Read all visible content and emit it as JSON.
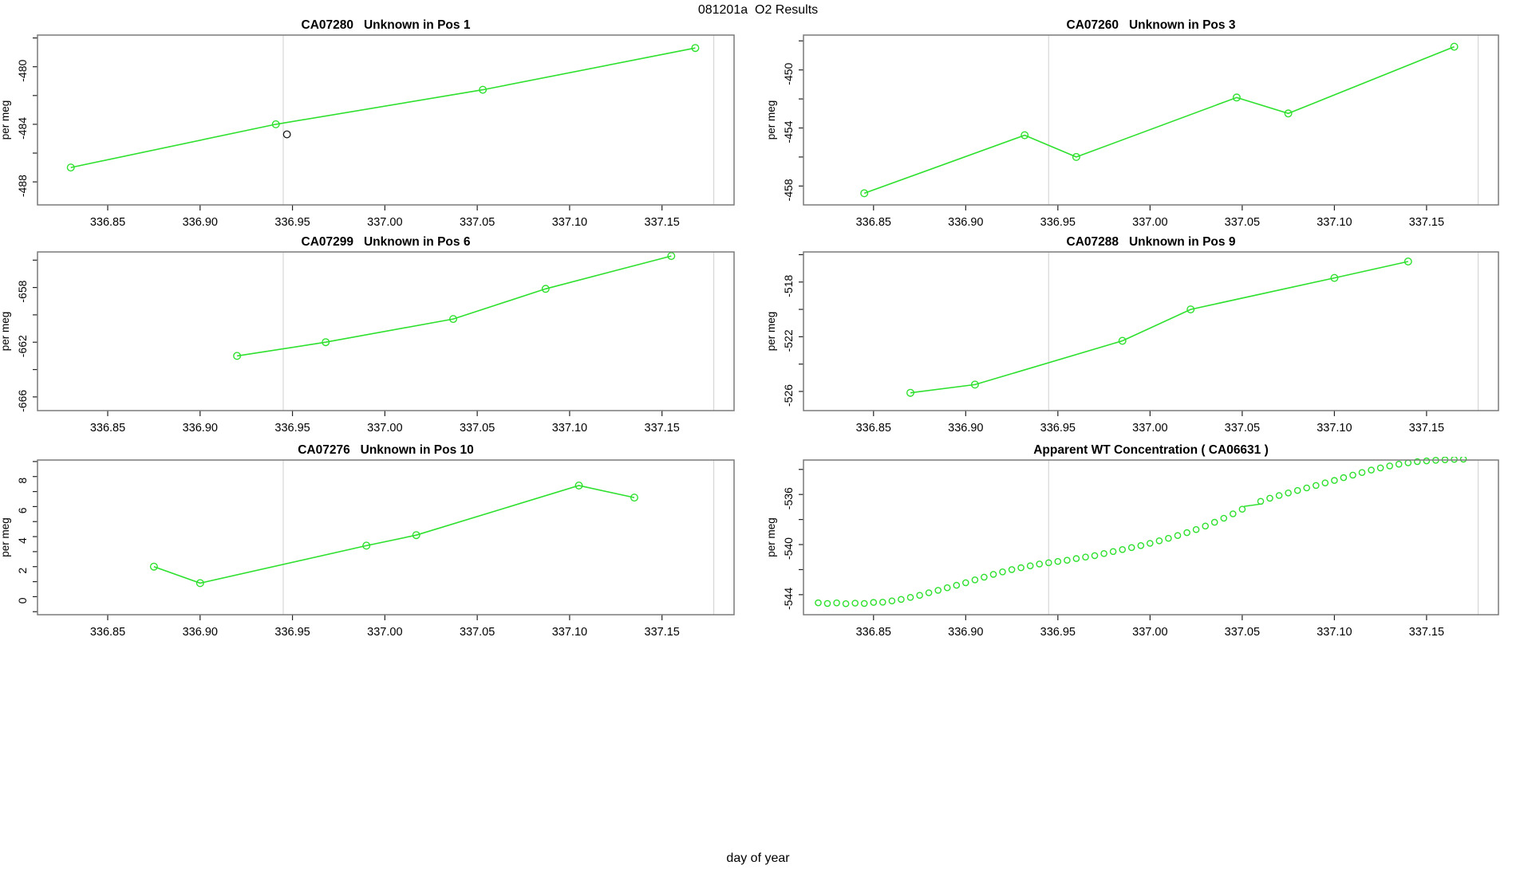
{
  "figure": {
    "title": "081201a  O2 Results",
    "xlabel": "day of year"
  },
  "colors": {
    "series_green": "#2ee02e",
    "outlier_black": "#1a1a1a",
    "gridline": "#d6d6d6",
    "box": "#7a7a7a",
    "tick": "#222222",
    "text": "#000000"
  },
  "axes": {
    "xlim": [
      336.812,
      337.189
    ],
    "xticks": [
      336.85,
      336.9,
      336.95,
      337.0,
      337.05,
      337.1,
      337.15
    ],
    "xtick_labels": [
      "336.85",
      "336.90",
      "336.95",
      "337.00",
      "337.05",
      "337.10",
      "337.15"
    ],
    "vlines": [
      336.945,
      337.178
    ],
    "ylabel": "per meg"
  },
  "chart_data": [
    {
      "id": "CA07280",
      "title": "CA07280   Unknown in Pos 1",
      "type": "line",
      "ylim": [
        -489.6,
        -477.8
      ],
      "yticks": [
        -488,
        -484,
        -480
      ],
      "ytick_labels": [
        "-488",
        "-484",
        "-480"
      ],
      "minor_tick_step": 2,
      "points": [
        [
          336.83,
          -487.0
        ],
        [
          336.941,
          -484.0
        ],
        [
          337.053,
          -481.6
        ],
        [
          337.168,
          -478.7
        ]
      ],
      "extra_points": [
        {
          "x": 336.947,
          "y": -484.7,
          "color": "black"
        }
      ],
      "draw_line": true
    },
    {
      "id": "CA07260",
      "title": "CA07260   Unknown in Pos 3",
      "type": "line",
      "ylim": [
        -459.3,
        -447.6
      ],
      "yticks": [
        -458,
        -454,
        -450
      ],
      "ytick_labels": [
        "-458",
        "-454",
        "-450"
      ],
      "minor_tick_step": 2,
      "points": [
        [
          336.845,
          -458.5
        ],
        [
          336.932,
          -454.5
        ],
        [
          336.96,
          -456.0
        ],
        [
          337.047,
          -451.9
        ],
        [
          337.075,
          -453.0
        ],
        [
          337.165,
          -448.4
        ]
      ],
      "extra_points": [],
      "draw_line": true
    },
    {
      "id": "CA07299",
      "title": "CA07299   Unknown in Pos 6",
      "type": "line",
      "ylim": [
        -667.0,
        -655.4
      ],
      "yticks": [
        -666,
        -662,
        -658
      ],
      "ytick_labels": [
        "-666",
        "-662",
        "-658"
      ],
      "minor_tick_step": 2,
      "points": [
        [
          336.92,
          -663.0
        ],
        [
          336.968,
          -662.0
        ],
        [
          337.037,
          -660.3
        ],
        [
          337.087,
          -658.1
        ],
        [
          337.155,
          -655.7
        ]
      ],
      "extra_points": [],
      "draw_line": true
    },
    {
      "id": "CA07288",
      "title": "CA07288   Unknown in Pos 9",
      "type": "line",
      "ylim": [
        -527.4,
        -515.8
      ],
      "yticks": [
        -526,
        -522,
        -518
      ],
      "ytick_labels": [
        "-526",
        "-522",
        "-518"
      ],
      "minor_tick_step": 2,
      "points": [
        [
          336.87,
          -526.1
        ],
        [
          336.905,
          -525.5
        ],
        [
          336.985,
          -522.3
        ],
        [
          337.022,
          -520.0
        ],
        [
          337.1,
          -517.7
        ],
        [
          337.14,
          -516.5
        ]
      ],
      "extra_points": [],
      "draw_line": true
    },
    {
      "id": "CA07276",
      "title": "CA07276   Unknown in Pos 10",
      "type": "line",
      "ylim": [
        -1.2,
        9.1
      ],
      "yticks": [
        0,
        2,
        4,
        6,
        8
      ],
      "ytick_labels": [
        "0",
        "2",
        "4",
        "6",
        "8"
      ],
      "minor_tick_step": 1,
      "points": [
        [
          336.875,
          2.0
        ],
        [
          336.9,
          0.9
        ],
        [
          336.99,
          3.4
        ],
        [
          337.017,
          4.1
        ],
        [
          337.105,
          7.4
        ],
        [
          337.135,
          6.6
        ]
      ],
      "extra_points": [],
      "draw_line": true
    },
    {
      "id": "CA06631",
      "title": "Apparent WT Concentration ( CA06631 )",
      "type": "scatter",
      "ylim": [
        -545.6,
        -533.25
      ],
      "yticks": [
        -544,
        -540,
        -536
      ],
      "ytick_labels": [
        "-544",
        "-540",
        "-536"
      ],
      "minor_tick_step": 2,
      "points": [
        [
          336.82,
          -544.65
        ],
        [
          336.825,
          -544.7
        ],
        [
          336.83,
          -544.66
        ],
        [
          336.835,
          -544.72
        ],
        [
          336.84,
          -544.68
        ],
        [
          336.845,
          -544.7
        ],
        [
          336.85,
          -544.62
        ],
        [
          336.855,
          -544.6
        ],
        [
          336.86,
          -544.5
        ],
        [
          336.865,
          -544.38
        ],
        [
          336.87,
          -544.22
        ],
        [
          336.875,
          -544.05
        ],
        [
          336.88,
          -543.85
        ],
        [
          336.885,
          -543.65
        ],
        [
          336.89,
          -543.45
        ],
        [
          336.895,
          -543.25
        ],
        [
          336.9,
          -543.05
        ],
        [
          336.905,
          -542.82
        ],
        [
          336.91,
          -542.6
        ],
        [
          336.915,
          -542.38
        ],
        [
          336.92,
          -542.18
        ],
        [
          336.925,
          -542.0
        ],
        [
          336.93,
          -541.85
        ],
        [
          336.935,
          -541.7
        ],
        [
          336.94,
          -541.55
        ],
        [
          336.945,
          -541.45
        ],
        [
          336.95,
          -541.35
        ],
        [
          336.955,
          -541.25
        ],
        [
          336.96,
          -541.12
        ],
        [
          336.965,
          -541.0
        ],
        [
          336.97,
          -540.88
        ],
        [
          336.975,
          -540.72
        ],
        [
          336.98,
          -540.56
        ],
        [
          336.985,
          -540.4
        ],
        [
          336.99,
          -540.24
        ],
        [
          336.995,
          -540.08
        ],
        [
          337.0,
          -539.9
        ],
        [
          337.005,
          -539.7
        ],
        [
          337.01,
          -539.5
        ],
        [
          337.015,
          -539.28
        ],
        [
          337.02,
          -539.05
        ],
        [
          337.025,
          -538.8
        ],
        [
          337.03,
          -538.52
        ],
        [
          337.035,
          -538.22
        ],
        [
          337.04,
          -537.9
        ],
        [
          337.045,
          -537.55
        ],
        [
          337.05,
          -537.18
        ],
        [
          337.06,
          -536.55
        ],
        [
          337.065,
          -536.3
        ],
        [
          337.07,
          -536.08
        ],
        [
          337.075,
          -535.88
        ],
        [
          337.08,
          -535.68
        ],
        [
          337.085,
          -535.48
        ],
        [
          337.09,
          -535.28
        ],
        [
          337.095,
          -535.08
        ],
        [
          337.1,
          -534.88
        ],
        [
          337.105,
          -534.66
        ],
        [
          337.11,
          -534.45
        ],
        [
          337.115,
          -534.25
        ],
        [
          337.12,
          -534.05
        ],
        [
          337.125,
          -533.88
        ],
        [
          337.13,
          -533.72
        ],
        [
          337.135,
          -533.58
        ],
        [
          337.14,
          -533.47
        ],
        [
          337.145,
          -533.38
        ],
        [
          337.15,
          -533.32
        ],
        [
          337.155,
          -533.27
        ],
        [
          337.16,
          -533.23
        ],
        [
          337.165,
          -533.2
        ],
        [
          337.17,
          -533.18
        ]
      ],
      "dash_segment": [
        [
          337.051,
          -536.95
        ],
        [
          337.061,
          -536.75
        ]
      ],
      "extra_points": [],
      "draw_line": false
    }
  ]
}
